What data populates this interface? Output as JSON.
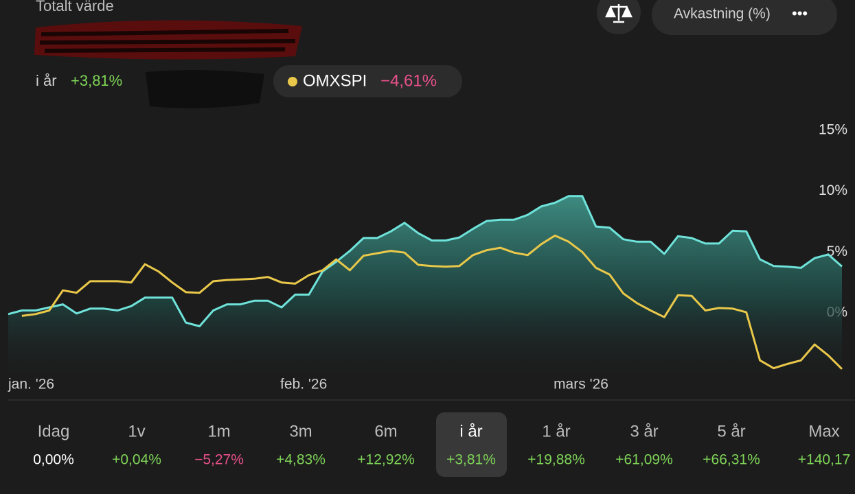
{
  "header": {
    "title": "Totalt värde",
    "period_label": "i år",
    "period_change": "+3,81%",
    "benchmark_change": "−4,61%"
  },
  "controls": {
    "mode": "Avkastning (%)",
    "more": "•••"
  },
  "chart_data": {
    "type": "line",
    "categories": [
      "jan. '26",
      null,
      null,
      null,
      null,
      null,
      null,
      null,
      null,
      null,
      null,
      null,
      null,
      null,
      null,
      null,
      null,
      null,
      null,
      null,
      "feb. '26",
      null,
      null,
      null,
      null,
      null,
      null,
      null,
      null,
      null,
      null,
      null,
      null,
      null,
      null,
      null,
      null,
      null,
      null,
      null,
      "mars '26",
      null,
      null,
      null,
      null,
      null,
      null,
      null,
      null,
      null,
      null,
      null,
      null,
      null,
      null,
      null,
      null,
      null,
      null,
      null,
      null,
      null
    ],
    "series": [
      {
        "color": "#6fe3da",
        "fill": true,
        "values": [
          -0.1,
          0.2,
          0.2,
          0.45,
          0.7,
          -0.05,
          0.35,
          0.35,
          0.2,
          0.55,
          1.25,
          1.25,
          1.25,
          -0.8,
          -1.1,
          0.2,
          0.7,
          0.7,
          1.0,
          1.0,
          0.45,
          1.5,
          1.5,
          3.4,
          4.2,
          5.1,
          6.15,
          6.15,
          6.7,
          7.4,
          6.55,
          5.95,
          5.95,
          6.2,
          6.9,
          7.55,
          7.65,
          7.65,
          8.05,
          8.75,
          9.05,
          9.6,
          9.6,
          7.1,
          7.0,
          6.05,
          5.85,
          5.85,
          4.85,
          6.3,
          6.15,
          5.7,
          5.7,
          6.75,
          6.7,
          4.4,
          3.85,
          3.8,
          3.7,
          4.5,
          4.8,
          3.81
        ]
      },
      {
        "name": "OMXSPI",
        "color": "#e9c84a",
        "values": [
          null,
          -0.25,
          -0.1,
          0.2,
          1.85,
          1.65,
          2.6,
          2.6,
          2.6,
          2.5,
          4.0,
          3.4,
          2.5,
          1.7,
          1.65,
          2.6,
          2.7,
          2.75,
          2.8,
          2.95,
          2.5,
          2.4,
          3.1,
          3.5,
          4.4,
          3.5,
          4.7,
          4.9,
          5.1,
          4.95,
          3.95,
          3.85,
          3.8,
          3.85,
          4.75,
          5.15,
          5.35,
          4.95,
          4.75,
          5.65,
          6.35,
          5.85,
          5.0,
          3.7,
          3.15,
          1.6,
          0.8,
          0.2,
          -0.35,
          1.45,
          1.4,
          0.2,
          0.4,
          0.35,
          0.05,
          -3.9,
          -4.55,
          -4.2,
          -3.9,
          -2.6,
          -3.5,
          -4.61
        ]
      }
    ],
    "ylim": [
      -5,
      15
    ],
    "yticks": [
      {
        "value": 0,
        "label": "0%"
      },
      {
        "value": 5,
        "label": "5%"
      },
      {
        "value": 10,
        "label": "10%"
      },
      {
        "value": 15,
        "label": "15%"
      }
    ]
  },
  "periods": [
    {
      "label": "Idag",
      "change": "0,00%"
    },
    {
      "label": "1v",
      "change": "+0,04%"
    },
    {
      "label": "1m",
      "change": "−5,27%"
    },
    {
      "label": "3m",
      "change": "+4,83%"
    },
    {
      "label": "6m",
      "change": "+12,92%"
    },
    {
      "label": "i år",
      "change": "+3,81%",
      "selected": true
    },
    {
      "label": "1 år",
      "change": "+19,88%"
    },
    {
      "label": "3 år",
      "change": "+61,09%"
    },
    {
      "label": "5 år",
      "change": "+66,31%"
    },
    {
      "label": "Max",
      "change": "+140,17"
    }
  ]
}
